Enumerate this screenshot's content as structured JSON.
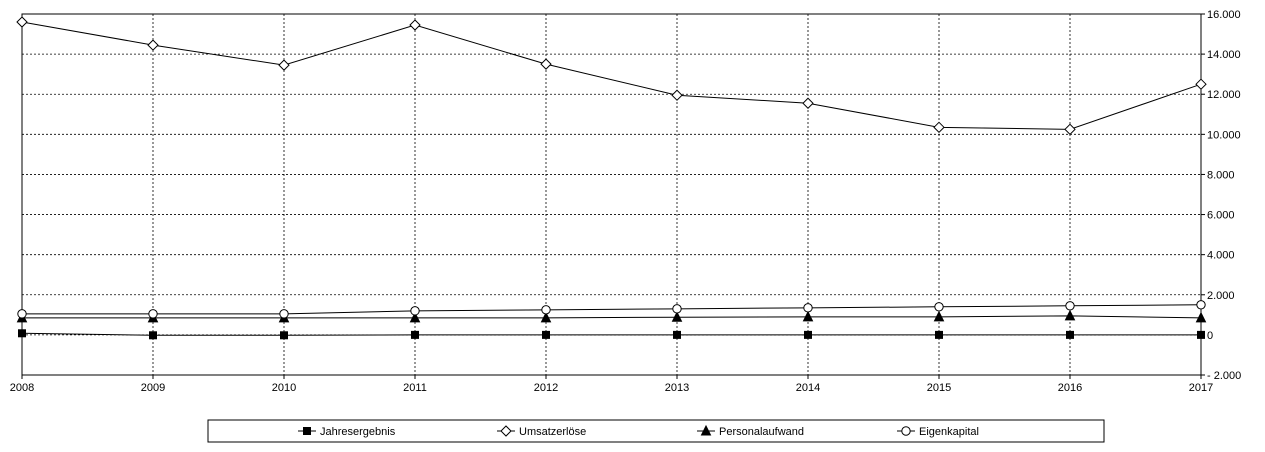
{
  "chart_data": {
    "type": "line",
    "x": [
      "2008",
      "2009",
      "2010",
      "2011",
      "2012",
      "2013",
      "2014",
      "2015",
      "2016",
      "2017"
    ],
    "series": [
      {
        "name": "Jahresergebnis",
        "marker": "square-filled",
        "values": [
          80,
          -20,
          -20,
          0,
          0,
          0,
          0,
          0,
          0,
          0
        ]
      },
      {
        "name": "Umsatzerlöse",
        "marker": "diamond-open",
        "values": [
          15600,
          14450,
          13450,
          15450,
          13500,
          11950,
          11550,
          10350,
          10250,
          12500
        ]
      },
      {
        "name": "Personalaufwand",
        "marker": "triangle-filled",
        "values": [
          850,
          850,
          850,
          850,
          850,
          880,
          900,
          900,
          950,
          850
        ]
      },
      {
        "name": "Eigenkapital",
        "marker": "circle-open",
        "values": [
          1050,
          1050,
          1050,
          1200,
          1250,
          1300,
          1350,
          1400,
          1450,
          1500
        ]
      }
    ],
    "ylim": [
      -2000,
      16000
    ],
    "yticks": [
      16000,
      14000,
      12000,
      10000,
      8000,
      6000,
      4000,
      2000,
      0,
      -2000
    ],
    "ytick_labels": [
      "16.000",
      "14.000",
      "12.000",
      "10.000",
      "8.000",
      "6.000",
      "4.000",
      "2.000",
      "0",
      "- 2.000"
    ],
    "y_axis_side": "right",
    "grid": {
      "x": "dashed",
      "y": "dashed"
    },
    "legend_position": "bottom",
    "line_color": "#000000",
    "title": "",
    "xlabel": "",
    "ylabel": ""
  }
}
